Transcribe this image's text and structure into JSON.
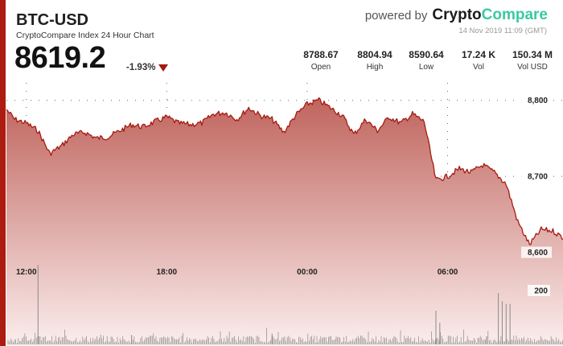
{
  "header": {
    "pair": "BTC-USD",
    "subtitle": "CryptoCompare Index 24 Hour Chart",
    "price": "8619.2",
    "change": "-1.93%",
    "powered_by": "powered by",
    "brand_part1": "Crypto",
    "brand_part2": "Compare",
    "timestamp": "14 Nov 2019 11:09 (GMT)"
  },
  "stats": [
    {
      "value": "8788.67",
      "label": "Open"
    },
    {
      "value": "8804.94",
      "label": "High"
    },
    {
      "value": "8590.64",
      "label": "Low"
    },
    {
      "value": "17.24 K",
      "label": "Vol"
    },
    {
      "value": "150.34 M",
      "label": "Vol USD"
    }
  ],
  "colors": {
    "accent": "#ad1c10",
    "brand_green": "#3bc9a1",
    "line": "#a51b10"
  },
  "chart_data": {
    "type": "area",
    "title": "BTC-USD",
    "x_ticks": [
      "12:00",
      "18:00",
      "00:00",
      "06:00"
    ],
    "price_ticks": [
      "8,800",
      "8,700",
      "8,600"
    ],
    "volume_ticks": [
      "200"
    ],
    "ylim": [
      8572,
      8823
    ],
    "price_series": {
      "x": [
        "11:09",
        "11:30",
        "12:00",
        "12:30",
        "13:00",
        "13:30",
        "14:00",
        "14:30",
        "15:00",
        "15:30",
        "16:00",
        "16:30",
        "17:00",
        "17:30",
        "18:00",
        "18:30",
        "19:00",
        "19:30",
        "20:00",
        "20:30",
        "21:00",
        "21:30",
        "22:00",
        "22:30",
        "23:00",
        "23:30",
        "00:00",
        "00:30",
        "01:00",
        "01:30",
        "02:00",
        "02:30",
        "03:00",
        "03:30",
        "04:00",
        "04:30",
        "05:00",
        "05:30",
        "06:00",
        "06:30",
        "07:00",
        "07:30",
        "08:00",
        "08:30",
        "09:00",
        "09:30",
        "10:00",
        "10:30",
        "11:00",
        "11:09"
      ],
      "values": [
        8788,
        8775,
        8770,
        8760,
        8730,
        8740,
        8755,
        8758,
        8750,
        8752,
        8760,
        8768,
        8765,
        8772,
        8778,
        8770,
        8768,
        8770,
        8782,
        8784,
        8775,
        8790,
        8780,
        8775,
        8758,
        8780,
        8795,
        8800,
        8790,
        8780,
        8755,
        8775,
        8760,
        8778,
        8770,
        8782,
        8772,
        8695,
        8700,
        8710,
        8705,
        8715,
        8705,
        8690,
        8640,
        8610,
        8630,
        8628,
        8618,
        8619
      ]
    },
    "volume_series": {
      "x": [
        "12:30",
        "16:30",
        "22:30",
        "05:30",
        "05:40",
        "07:40",
        "08:10",
        "08:20",
        "08:30",
        "08:40"
      ],
      "values": [
        295,
        35,
        40,
        125,
        80,
        30,
        190,
        160,
        150,
        150
      ]
    }
  }
}
